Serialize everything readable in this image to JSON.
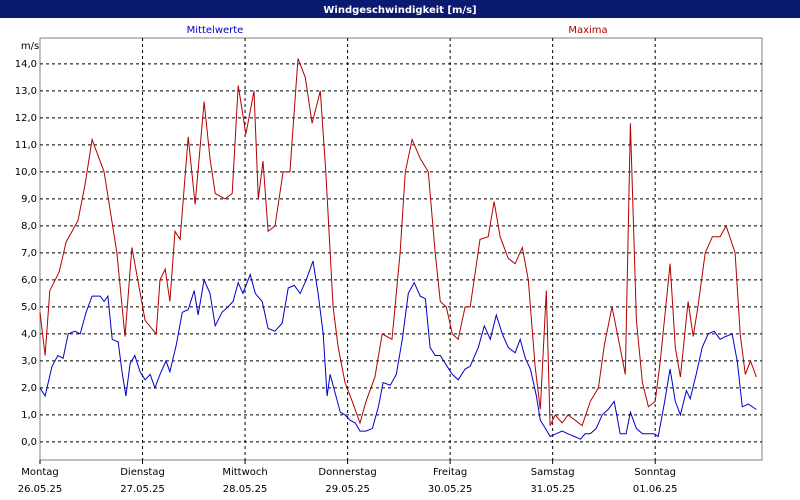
{
  "chart_data": {
    "type": "line",
    "title": "Windgeschwindigkeit [m/s]",
    "y_label": "m/s",
    "xlim": [
      0,
      169
    ],
    "ylim": [
      -0.67,
      14.96
    ],
    "xticks": [
      {
        "value": 0,
        "label": "Montag"
      },
      {
        "value": 24,
        "label": "Dienstag"
      },
      {
        "value": 48,
        "label": "Mittwoch"
      },
      {
        "value": 72,
        "label": "Donnerstag"
      },
      {
        "value": 96,
        "label": "Freitag"
      },
      {
        "value": 120,
        "label": "Samstag"
      },
      {
        "value": 144,
        "label": "Sonntag"
      }
    ],
    "xtick_dates": [
      "26.05.25",
      "27.05.25",
      "28.05.25",
      "29.05.25",
      "30.05.25",
      "31.05.25",
      "01.06.25"
    ],
    "yticks": [
      {
        "value": 0,
        "label": "0,0"
      },
      {
        "value": 1,
        "label": "1,0"
      },
      {
        "value": 2,
        "label": "2,0"
      },
      {
        "value": 3,
        "label": "3,0"
      },
      {
        "value": 4,
        "label": "4,0"
      },
      {
        "value": 5,
        "label": "5,0"
      },
      {
        "value": 6,
        "label": "6,0"
      },
      {
        "value": 7,
        "label": "7,0"
      },
      {
        "value": 8,
        "label": "8,0"
      },
      {
        "value": 9,
        "label": "9,0"
      },
      {
        "value": 10,
        "label": "10,0"
      },
      {
        "value": 11,
        "label": "11,0"
      },
      {
        "value": 12,
        "label": "12,0"
      },
      {
        "value": 13,
        "label": "13,0"
      },
      {
        "value": 14,
        "label": "14,0"
      }
    ],
    "grid": true,
    "series": [
      {
        "name": "Mittelwerte",
        "color": "#0000c8",
        "x": [
          0,
          1.2,
          2.8,
          4.2,
          5.4,
          6.6,
          8.2,
          9.4,
          10.8,
          12.2,
          14.1,
          15.0,
          15.9,
          16.9,
          18.3,
          19.2,
          20.1,
          21.1,
          22.2,
          23.4,
          24.6,
          25.8,
          26.9,
          28.1,
          29.5,
          30.4,
          31.9,
          33.3,
          34.7,
          36.1,
          37.0,
          38.4,
          39.8,
          41.0,
          42.6,
          44.0,
          45.2,
          46.4,
          47.5,
          49.2,
          50.4,
          52.0,
          53.4,
          55.0,
          56.7,
          58.1,
          59.5,
          60.9,
          62.3,
          63.9,
          65.1,
          66.3,
          67.2,
          67.9,
          69.1,
          70.3,
          71.4,
          72.6,
          73.8,
          74.9,
          76.3,
          77.8,
          79.2,
          80.3,
          82.0,
          83.4,
          84.8,
          86.2,
          87.6,
          89.0,
          90.2,
          91.3,
          92.5,
          93.7,
          95.3,
          96.5,
          97.9,
          99.5,
          100.7,
          102.6,
          104.0,
          105.4,
          106.8,
          108.2,
          109.6,
          111.2,
          112.4,
          113.6,
          114.8,
          116.2,
          117.1,
          118.3,
          119.4,
          120.8,
          122.2,
          123.6,
          125.1,
          126.5,
          127.6,
          128.8,
          130.2,
          131.6,
          133.0,
          134.4,
          135.8,
          137.2,
          138.2,
          139.6,
          141.0,
          142.4,
          143.8,
          144.7,
          146.1,
          147.5,
          148.7,
          149.9,
          151.3,
          152.2,
          153.6,
          155.0,
          156.4,
          157.8,
          159.2,
          160.4,
          162.0,
          163.2,
          164.4,
          165.8,
          167.7
        ],
        "values": [
          2.0,
          1.7,
          2.8,
          3.2,
          3.1,
          4.0,
          4.1,
          4.0,
          4.8,
          5.4,
          5.4,
          5.2,
          5.4,
          3.8,
          3.7,
          2.6,
          1.7,
          2.9,
          3.2,
          2.6,
          2.3,
          2.5,
          2.0,
          2.5,
          3.0,
          2.6,
          3.6,
          4.8,
          4.9,
          5.6,
          4.7,
          6.0,
          5.5,
          4.3,
          4.8,
          5.0,
          5.2,
          5.9,
          5.5,
          6.2,
          5.5,
          5.2,
          4.2,
          4.1,
          4.4,
          5.7,
          5.8,
          5.5,
          6.0,
          6.7,
          5.5,
          4.0,
          1.7,
          2.5,
          1.8,
          1.1,
          1.0,
          0.8,
          0.7,
          0.4,
          0.4,
          0.5,
          1.3,
          2.2,
          2.1,
          2.5,
          3.8,
          5.5,
          5.9,
          5.4,
          5.3,
          3.5,
          3.2,
          3.2,
          2.8,
          2.5,
          2.3,
          2.7,
          2.8,
          3.5,
          4.3,
          3.8,
          4.7,
          4.0,
          3.5,
          3.3,
          3.8,
          3.1,
          2.7,
          1.7,
          0.8,
          0.5,
          0.2,
          0.3,
          0.4,
          0.3,
          0.2,
          0.1,
          0.3,
          0.3,
          0.5,
          1.0,
          1.2,
          1.5,
          0.3,
          0.3,
          1.1,
          0.5,
          0.3,
          0.3,
          0.3,
          0.2,
          1.4,
          2.7,
          1.5,
          1.0,
          1.9,
          1.6,
          2.5,
          3.5,
          4.0,
          4.1,
          3.8,
          3.9,
          4.0,
          3.0,
          1.3,
          1.4,
          1.2
        ]
      },
      {
        "name": "Maxima",
        "color": "#b40000",
        "x": [
          0,
          1.2,
          2.3,
          4.5,
          6.1,
          8.9,
          10.5,
          12.2,
          15.0,
          18.0,
          19.9,
          21.5,
          24.6,
          27.2,
          28.1,
          29.3,
          30.4,
          31.6,
          32.8,
          34.7,
          36.3,
          38.4,
          39.8,
          41.0,
          43.3,
          45.0,
          46.4,
          48.2,
          50.1,
          51.1,
          52.2,
          53.4,
          55.0,
          56.9,
          58.5,
          60.4,
          62.1,
          63.7,
          65.6,
          66.9,
          68.6,
          69.8,
          71.4,
          73.1,
          74.9,
          76.3,
          78.4,
          80.1,
          82.4,
          84.3,
          85.5,
          87.1,
          89.0,
          90.9,
          92.5,
          93.7,
          95.1,
          96.5,
          97.9,
          99.5,
          100.7,
          103.0,
          104.9,
          106.3,
          107.7,
          109.6,
          111.2,
          112.9,
          114.3,
          115.9,
          117.1,
          118.5,
          119.4,
          120.6,
          122.2,
          123.6,
          125.3,
          126.9,
          128.8,
          130.7,
          132.1,
          133.9,
          135.4,
          137.0,
          138.2,
          139.6,
          141.0,
          142.4,
          144.0,
          145.2,
          147.5,
          148.7,
          149.9,
          151.7,
          152.9,
          154.1,
          155.7,
          157.4,
          159.2,
          160.6,
          162.7,
          163.9,
          165.1,
          166.3,
          167.7
        ],
        "values": [
          4.8,
          3.2,
          5.6,
          6.3,
          7.4,
          8.2,
          9.5,
          11.2,
          10.0,
          7.0,
          3.9,
          7.2,
          4.5,
          4.0,
          6.0,
          6.4,
          5.2,
          7.8,
          7.5,
          11.3,
          8.8,
          12.6,
          10.5,
          9.2,
          9.0,
          9.2,
          13.2,
          11.4,
          13.0,
          9.0,
          10.4,
          7.8,
          8.0,
          10.0,
          10.0,
          14.2,
          13.5,
          11.8,
          13.0,
          10.0,
          5.0,
          3.5,
          2.2,
          1.5,
          0.7,
          1.5,
          2.4,
          4.0,
          3.8,
          7.0,
          10.0,
          11.2,
          10.5,
          10.0,
          7.0,
          5.2,
          5.0,
          4.0,
          3.8,
          5.0,
          5.0,
          7.5,
          7.6,
          8.9,
          7.6,
          6.8,
          6.6,
          7.2,
          6.0,
          2.8,
          1.2,
          5.6,
          0.6,
          1.0,
          0.7,
          1.0,
          0.8,
          0.6,
          1.5,
          2.0,
          3.6,
          5.0,
          3.8,
          2.5,
          11.8,
          4.5,
          2.2,
          1.3,
          1.5,
          3.0,
          6.6,
          3.5,
          2.4,
          5.2,
          3.9,
          5.1,
          7.0,
          7.6,
          7.6,
          8.0,
          7.0,
          4.0,
          2.5,
          3.0,
          2.4
        ]
      }
    ]
  }
}
